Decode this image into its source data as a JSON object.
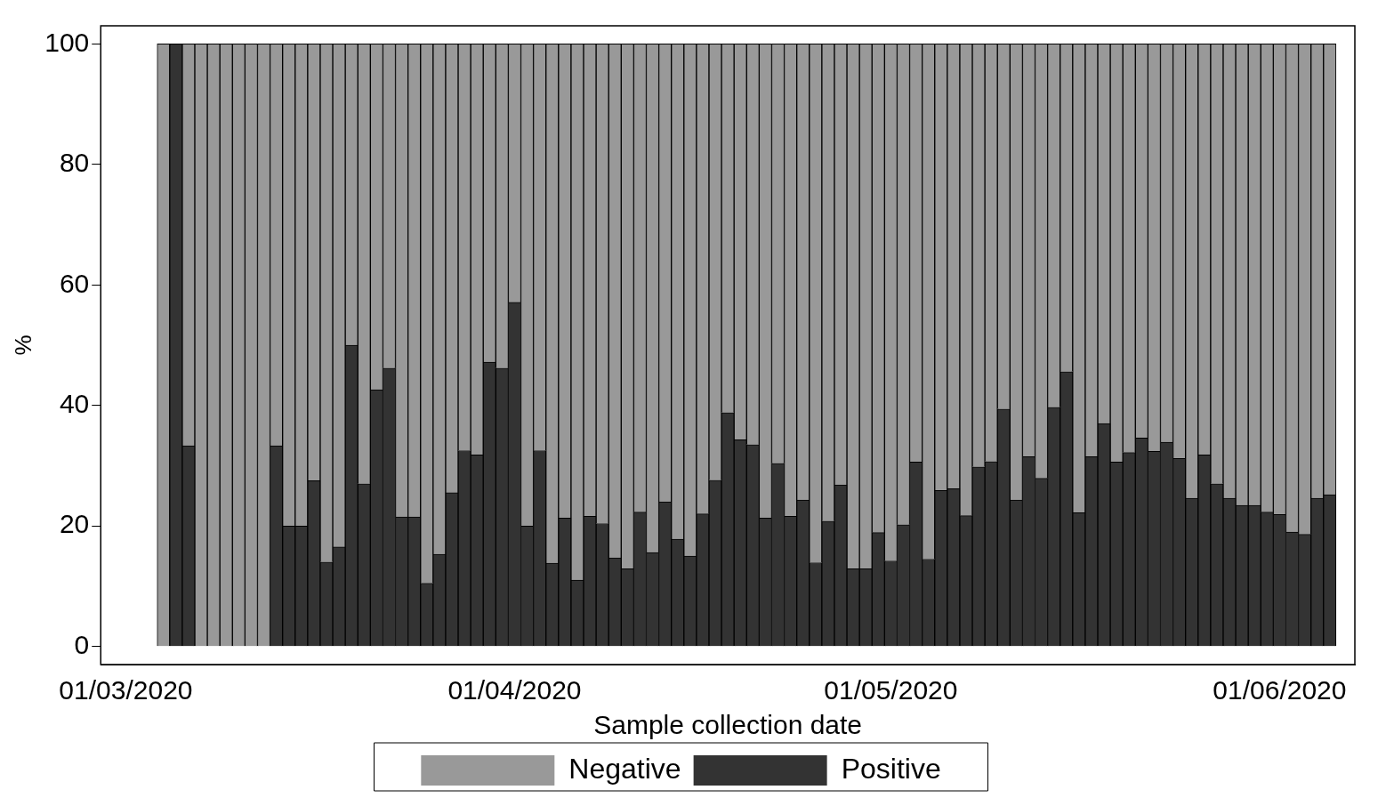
{
  "chart_data": {
    "type": "bar",
    "stacked": true,
    "xlabel": "Sample collection date",
    "ylabel": "%",
    "x": [
      "2020-03-04",
      "2020-03-05",
      "2020-03-06",
      "2020-03-07",
      "2020-03-08",
      "2020-03-09",
      "2020-03-10",
      "2020-03-11",
      "2020-03-12",
      "2020-03-13",
      "2020-03-14",
      "2020-03-15",
      "2020-03-16",
      "2020-03-17",
      "2020-03-18",
      "2020-03-19",
      "2020-03-20",
      "2020-03-21",
      "2020-03-22",
      "2020-03-23",
      "2020-03-24",
      "2020-03-25",
      "2020-03-26",
      "2020-03-27",
      "2020-03-28",
      "2020-03-29",
      "2020-03-30",
      "2020-03-31",
      "2020-04-01",
      "2020-04-02",
      "2020-04-03",
      "2020-04-04",
      "2020-04-05",
      "2020-04-06",
      "2020-04-07",
      "2020-04-08",
      "2020-04-09",
      "2020-04-10",
      "2020-04-11",
      "2020-04-12",
      "2020-04-13",
      "2020-04-14",
      "2020-04-15",
      "2020-04-16",
      "2020-04-17",
      "2020-04-18",
      "2020-04-19",
      "2020-04-20",
      "2020-04-21",
      "2020-04-22",
      "2020-04-23",
      "2020-04-24",
      "2020-04-25",
      "2020-04-26",
      "2020-04-27",
      "2020-04-28",
      "2020-04-29",
      "2020-04-30",
      "2020-05-01",
      "2020-05-02",
      "2020-05-03",
      "2020-05-04",
      "2020-05-05",
      "2020-05-06",
      "2020-05-07",
      "2020-05-08",
      "2020-05-09",
      "2020-05-10",
      "2020-05-11",
      "2020-05-12",
      "2020-05-13",
      "2020-05-14",
      "2020-05-15",
      "2020-05-16",
      "2020-05-17",
      "2020-05-18",
      "2020-05-19",
      "2020-05-20",
      "2020-05-21",
      "2020-05-22",
      "2020-05-23",
      "2020-05-24",
      "2020-05-25",
      "2020-05-26",
      "2020-05-27",
      "2020-05-28",
      "2020-05-29",
      "2020-05-30",
      "2020-05-31",
      "2020-06-01",
      "2020-06-02",
      "2020-06-03",
      "2020-06-04",
      "2020-06-05"
    ],
    "series": [
      {
        "name": "Positive",
        "color": "#333333",
        "values": [
          0,
          100,
          33.3,
          0,
          0,
          0,
          0,
          0,
          0,
          33.3,
          20,
          20,
          27.5,
          14,
          16.5,
          50,
          27,
          42.6,
          46.2,
          21.5,
          21.5,
          10.5,
          15.3,
          25.5,
          32.5,
          31.8,
          47.2,
          46.2,
          57.1,
          20,
          32.5,
          13.8,
          21.3,
          11,
          21.6,
          20.4,
          14.7,
          12.9,
          22.3,
          15.6,
          24,
          17.8,
          15,
          22,
          27.6,
          38.8,
          34.3,
          33.5,
          21.3,
          30.4,
          21.6,
          24.3,
          13.9,
          20.8,
          26.8,
          12.9,
          12.9,
          18.9,
          14.2,
          20.2,
          30.6,
          14.5,
          25.9,
          26.2,
          21.7,
          29.8,
          30.7,
          39.4,
          24.3,
          31.5,
          27.9,
          39.7,
          45.6,
          22.2,
          31.5,
          37,
          30.6,
          32.2,
          34.6,
          32.4,
          33.9,
          31.2,
          24.6,
          31.8,
          27,
          24.6,
          23.4,
          23.4,
          22.3,
          21.9,
          19,
          18.6,
          24.6,
          25.2
        ]
      },
      {
        "name": "Negative",
        "color": "#999999",
        "values": [
          100,
          0,
          66.7,
          100,
          100,
          100,
          100,
          100,
          100,
          66.7,
          80,
          80,
          72.5,
          86,
          83.5,
          50,
          73,
          57.4,
          53.8,
          78.5,
          78.5,
          89.5,
          84.7,
          74.5,
          67.5,
          68.2,
          52.8,
          53.8,
          42.9,
          80,
          67.5,
          86.2,
          78.7,
          89,
          78.4,
          79.6,
          85.3,
          87.1,
          77.7,
          84.4,
          76,
          82.2,
          85,
          78,
          72.4,
          61.2,
          65.7,
          66.5,
          78.7,
          69.6,
          78.4,
          75.7,
          86.1,
          79.2,
          73.2,
          87.1,
          87.1,
          81.1,
          85.8,
          79.8,
          69.4,
          85.5,
          74.1,
          73.8,
          78.3,
          70.2,
          69.3,
          60.6,
          75.7,
          68.5,
          72.1,
          60.3,
          54.4,
          77.8,
          68.5,
          63,
          69.4,
          67.8,
          65.4,
          67.6,
          66.1,
          68.8,
          75.4,
          68.2,
          73,
          75.4,
          76.6,
          76.6,
          77.7,
          78.1,
          81,
          81.4,
          75.4,
          74.8
        ]
      }
    ],
    "xlim": [
      "2020-02-28",
      "2020-06-07"
    ],
    "xticks": [
      {
        "value": "2020-03-01",
        "label": "01/03/2020"
      },
      {
        "value": "2020-04-01",
        "label": "01/04/2020"
      },
      {
        "value": "2020-05-01",
        "label": "01/05/2020"
      },
      {
        "value": "2020-06-01",
        "label": "01/06/2020"
      }
    ],
    "ylim": [
      -3,
      103
    ],
    "yticks": [
      0,
      20,
      40,
      60,
      80,
      100
    ],
    "grid": false,
    "legend": "bottom"
  }
}
